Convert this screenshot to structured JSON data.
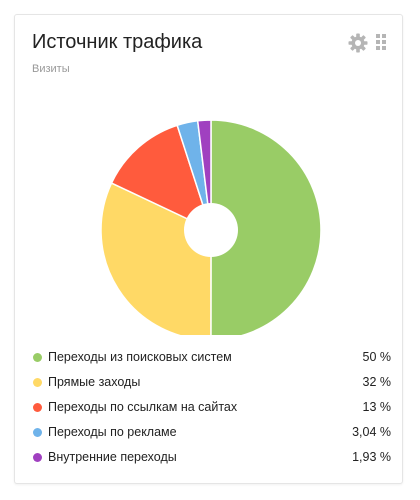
{
  "widget": {
    "title": "Источник трафика",
    "subtitle": "Визиты",
    "settings_icon": "gear-icon",
    "drag_icon": "drag-handle-icon"
  },
  "chart_data": {
    "type": "pie",
    "style": "donut",
    "title": "Источник трафика",
    "subtitle": "Визиты",
    "categories": [
      "Переходы из поисковых систем",
      "Прямые заходы",
      "Переходы по ссылкам на сайтах",
      "Переходы по рекламе",
      "Внутренние переходы"
    ],
    "values": [
      50,
      32,
      13,
      3.04,
      1.93
    ],
    "value_labels": [
      "50 %",
      "32 %",
      "13 %",
      "3,04 %",
      "1,93 %"
    ],
    "colors": [
      "#99cc66",
      "#ffd966",
      "#ff5b3d",
      "#6fb3ea",
      "#a040c0"
    ],
    "legend_position": "bottom"
  }
}
